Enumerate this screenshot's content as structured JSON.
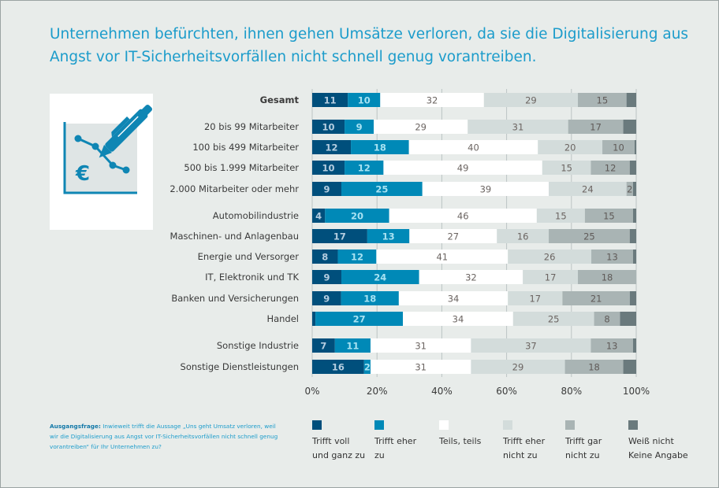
{
  "title": {
    "line1": "Unternehmen befürchten, ihnen gehen Umsätze verloren, da sie die Digitalisierung aus",
    "line2": "Angst vor IT-Sicherheitsvorfällen nicht schnell genug vorantreiben."
  },
  "icon": "euro-chart-with-pen-icon",
  "question": {
    "label": "Ausgangsfrage:",
    "text": "Inwieweit trifft die Aussage „Uns geht Umsatz verloren, weil wir die Digitalisierung aus Angst vor IT-Sicherheitsvorfällen nicht schnell genug vorantreiben“ für Ihr Unternehmen zu?"
  },
  "chart_data": {
    "type": "bar",
    "orientation": "horizontal",
    "stacked": true,
    "xlim": [
      0,
      100
    ],
    "x_ticks": [
      "0%",
      "20%",
      "40%",
      "60%",
      "80%",
      "100%"
    ],
    "grid": true,
    "legend_position": "bottom",
    "series": [
      {
        "name": "Trifft voll und ganz zu",
        "legend_lines": [
          "Trifft voll",
          "und ganz zu"
        ],
        "color": "#004f7c",
        "label_color": "#b5cde0"
      },
      {
        "name": "Trifft eher zu",
        "legend_lines": [
          "Trifft eher",
          "zu"
        ],
        "color": "#0089b7",
        "label_color": "#a8e2f2"
      },
      {
        "name": "Teils, teils",
        "legend_lines": [
          "Teils, teils",
          ""
        ],
        "color": "#ffffff",
        "label_color": "#6b6461"
      },
      {
        "name": "Trifft eher nicht zu",
        "legend_lines": [
          "Trifft eher",
          "nicht zu"
        ],
        "color": "#d3dcdb",
        "label_color": "#6b6461"
      },
      {
        "name": "Trifft gar nicht zu",
        "legend_lines": [
          "Trifft gar",
          "nicht zu"
        ],
        "color": "#a9b4b4",
        "label_color": "#5f5a58"
      },
      {
        "name": "Weiß nicht Keine Angabe",
        "legend_lines": [
          "Weiß nicht",
          "Keine Angabe"
        ],
        "color": "#6a7a7d",
        "label_color": "#ffffff"
      }
    ],
    "categories": [
      {
        "label": "Gesamt",
        "bold": true,
        "values": [
          11,
          10,
          32,
          29,
          15,
          3
        ]
      },
      {
        "label": "20 bis 99 Mitarbeiter",
        "values": [
          10,
          9,
          29,
          31,
          17,
          4
        ]
      },
      {
        "label": "100 bis 499 Mitarbeiter",
        "values": [
          12,
          18,
          40,
          20,
          10,
          0.5
        ]
      },
      {
        "label": "500 bis 1.999 Mitarbeiter",
        "values": [
          10,
          12,
          49,
          15,
          12,
          2
        ]
      },
      {
        "label": "2.000 Mitarbeiter oder mehr",
        "values": [
          9,
          25,
          39,
          24,
          2,
          1
        ]
      },
      {
        "label": "Automobilindustrie",
        "values": [
          4,
          20,
          46,
          15,
          15,
          1
        ]
      },
      {
        "label": "Maschinen- und Anlagenbau",
        "values": [
          17,
          13,
          27,
          16,
          25,
          2
        ]
      },
      {
        "label": "Energie und Versorger",
        "values": [
          8,
          12,
          41,
          26,
          13,
          1
        ]
      },
      {
        "label": "IT, Elektronik und TK",
        "values": [
          9,
          24,
          32,
          17,
          18,
          0
        ]
      },
      {
        "label": "Banken und Versicherungen",
        "values": [
          9,
          18,
          34,
          17,
          21,
          2
        ]
      },
      {
        "label": "Handel",
        "values": [
          1,
          27,
          34,
          25,
          8,
          5
        ]
      },
      {
        "label": "Sonstige Industrie",
        "values": [
          7,
          11,
          31,
          37,
          13,
          1
        ]
      },
      {
        "label": "Sonstige Dienstleistungen",
        "values": [
          16,
          2,
          31,
          29,
          18,
          4
        ]
      }
    ]
  }
}
